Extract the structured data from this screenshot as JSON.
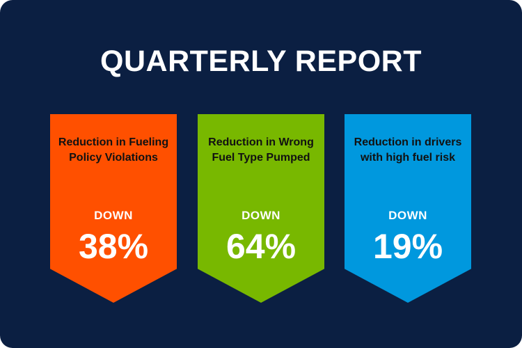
{
  "title": "QUARTERLY REPORT",
  "banners": [
    {
      "label": "Reduction in Fueling Policy Violations",
      "direction": "DOWN",
      "value": "38%",
      "color": "#ff5000"
    },
    {
      "label": "Reduction in Wrong Fuel Type Pumped",
      "direction": "DOWN",
      "value": "64%",
      "color": "#78b800"
    },
    {
      "label": "Reduction in drivers with high fuel risk",
      "direction": "DOWN",
      "value": "19%",
      "color": "#0098de"
    }
  ]
}
